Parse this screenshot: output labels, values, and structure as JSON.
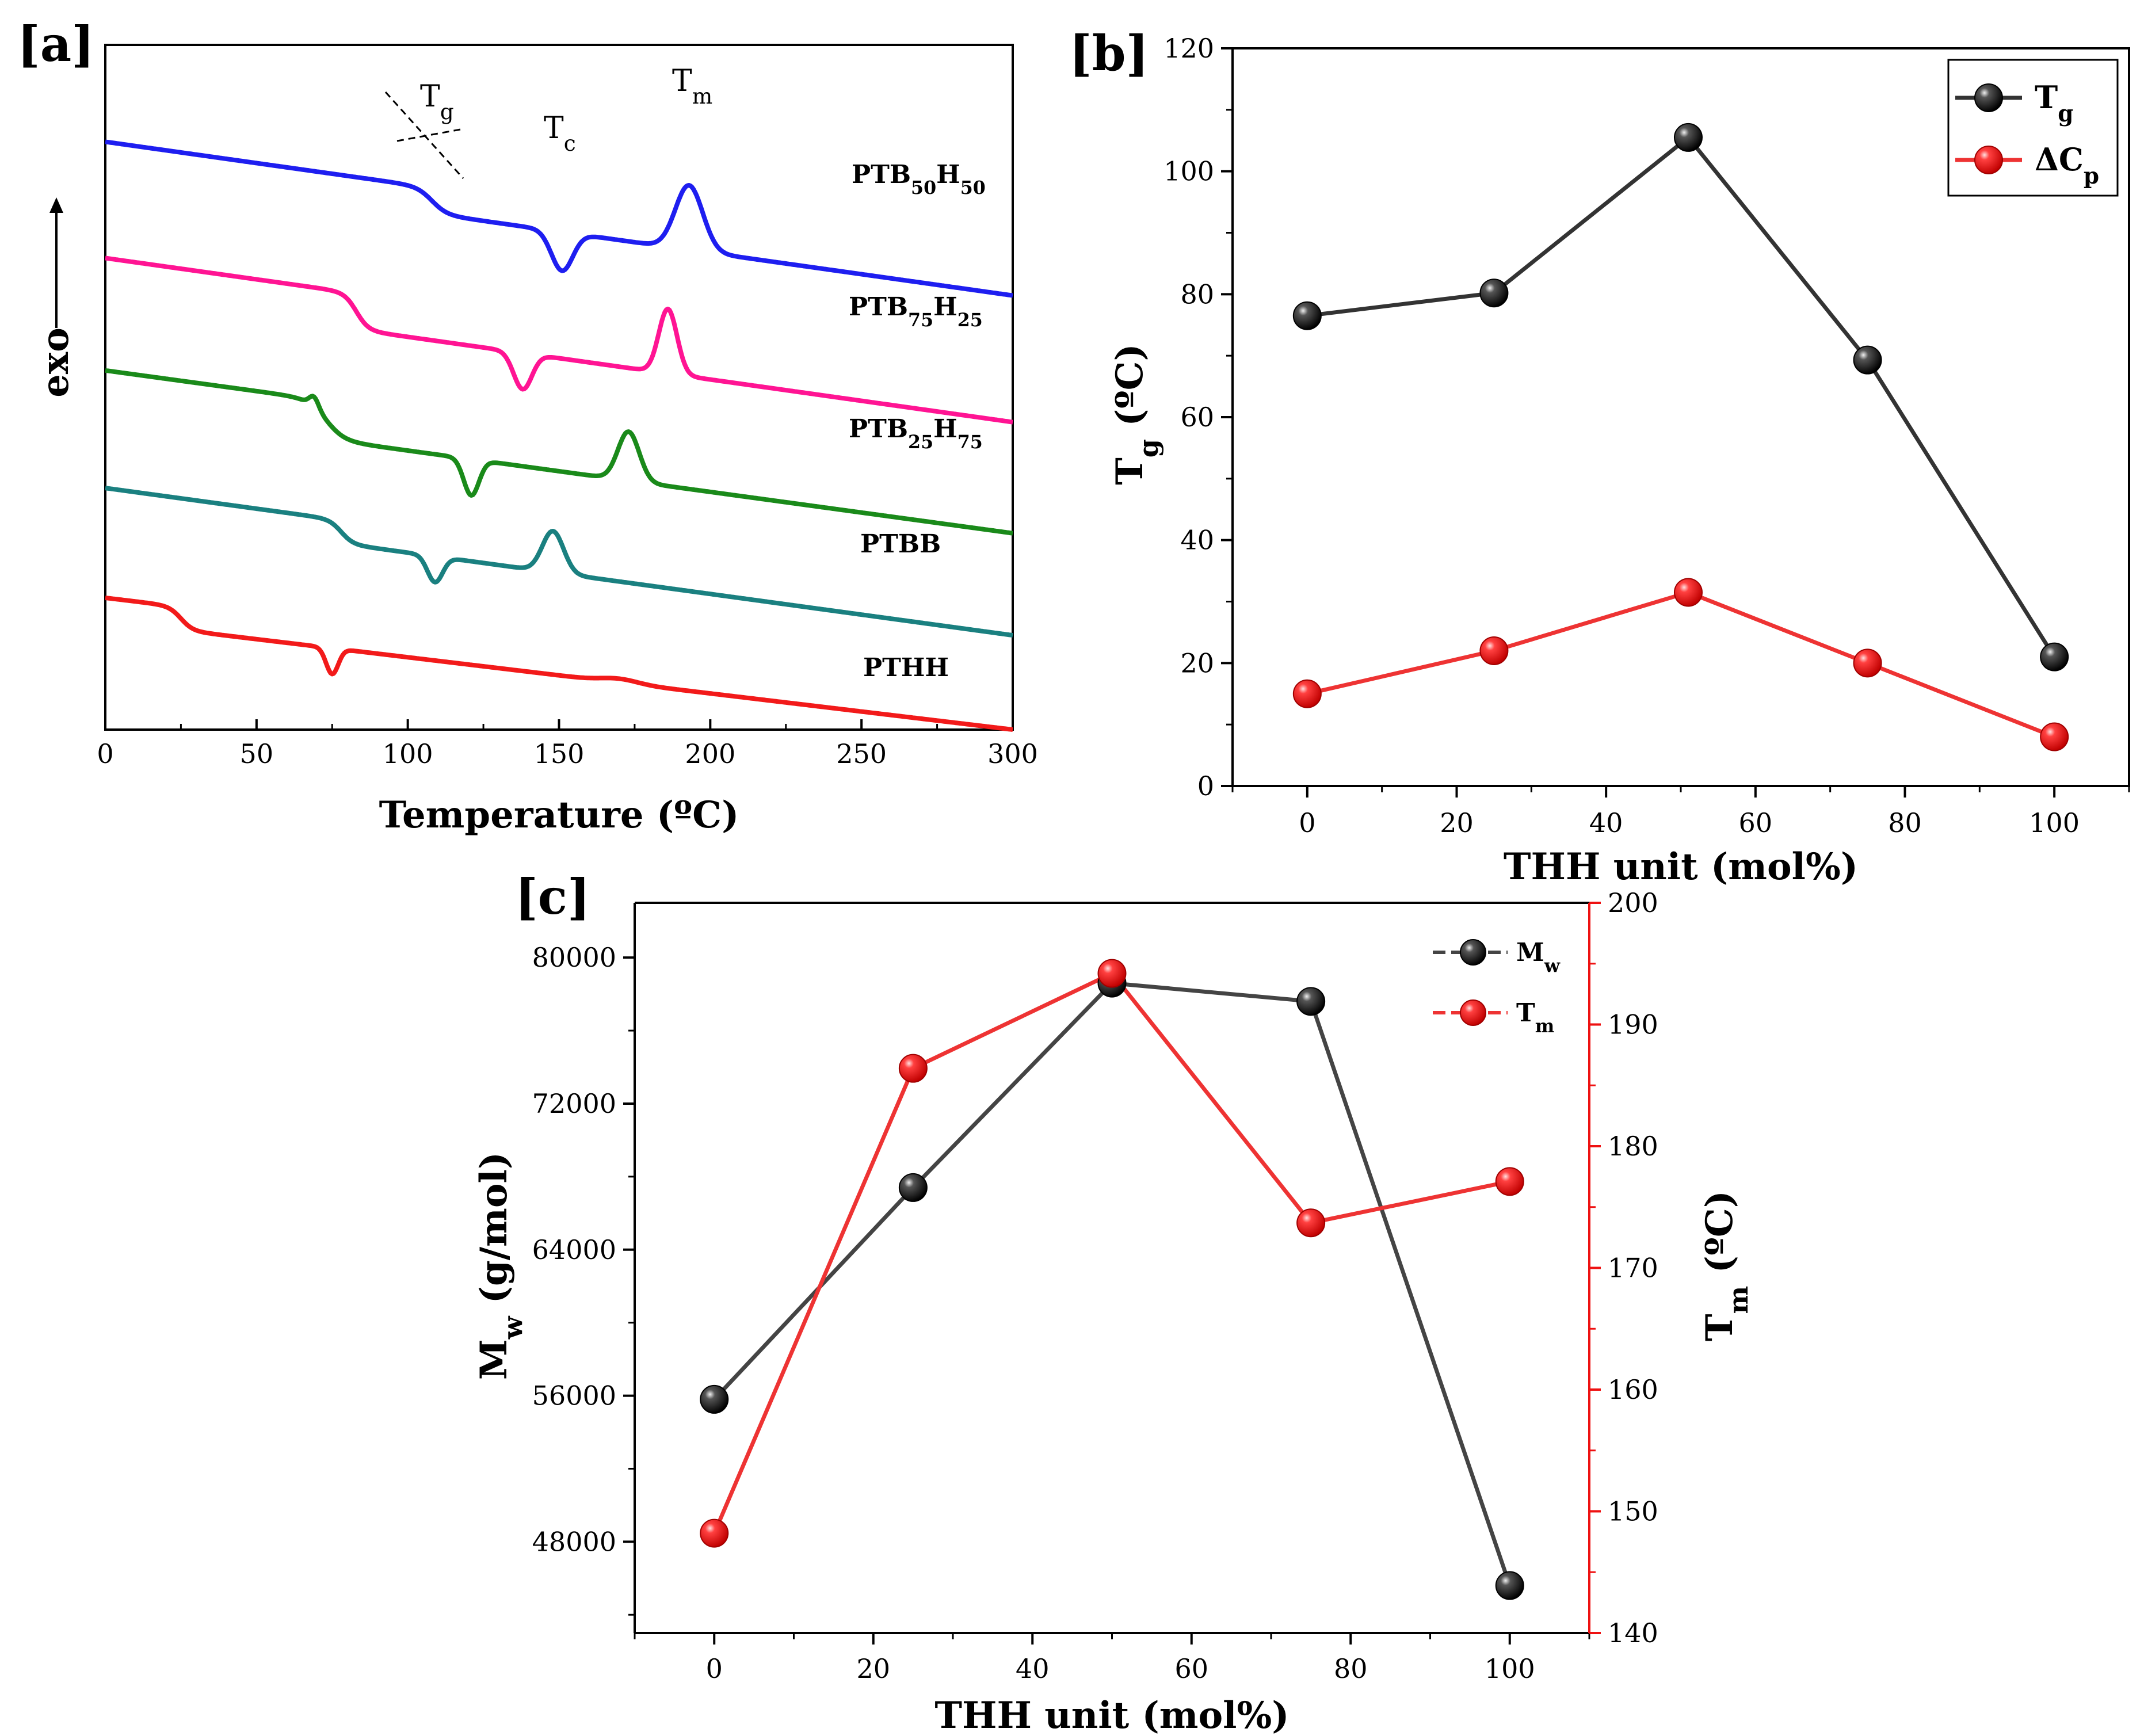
{
  "chart_data": [
    {
      "panel": "[a]",
      "type": "line",
      "title": "",
      "xlabel": "Temperature (ºC)",
      "ylabel": "exo",
      "xlim": [
        0,
        300
      ],
      "xticks": [
        0,
        50,
        100,
        150,
        200,
        250,
        300
      ],
      "annotations": [
        {
          "base": "T",
          "sub": "g"
        },
        {
          "base": "T",
          "sub": "c"
        },
        {
          "base": "T",
          "sub": "m"
        }
      ],
      "series": [
        {
          "name": "PTB50H50",
          "label_parts": [
            "PTB",
            "50",
            "H",
            "50",
            ""
          ],
          "color": "#1e1ef0",
          "offset": 4.55,
          "slope": 0.0033,
          "steps": [
            {
              "x": 108,
              "h": 0.2,
              "w": 2.5
            }
          ],
          "peaks": [
            {
              "x": 151,
              "h": -0.3,
              "w": 3.5
            },
            {
              "x": 193,
              "h": 0.5,
              "w": 4.5
            }
          ]
        },
        {
          "name": "PTB75H25",
          "label_parts": [
            "PTB",
            "75",
            "H",
            "25",
            ""
          ],
          "color": "#ff1493",
          "offset": 3.65,
          "slope": 0.0033,
          "steps": [
            {
              "x": 83,
              "h": 0.28,
              "w": 2.0
            }
          ],
          "peaks": [
            {
              "x": 138,
              "h": -0.28,
              "w": 3.0
            },
            {
              "x": 186,
              "h": 0.5,
              "w": 3.0
            }
          ]
        },
        {
          "name": "PTB25H75",
          "label_parts": [
            "PTB",
            "25",
            "H",
            "75",
            ""
          ],
          "color": "#1a8a1a",
          "offset": 2.78,
          "slope": 0.0032,
          "steps": [
            {
              "x": 73,
              "h": 0.3,
              "w": 3.0
            }
          ],
          "peaks": [
            {
              "x": 69,
              "h": 0.08,
              "w": 1.5
            },
            {
              "x": 121,
              "h": -0.28,
              "w": 2.5
            },
            {
              "x": 173,
              "h": 0.38,
              "w": 3.5
            }
          ]
        },
        {
          "name": "PTBB",
          "label_parts": [
            "PTBB",
            "",
            "",
            "",
            ""
          ],
          "color": "#1a8080",
          "offset": 1.87,
          "slope": 0.0032,
          "steps": [
            {
              "x": 78,
              "h": 0.18,
              "w": 2.0
            }
          ],
          "peaks": [
            {
              "x": 109,
              "h": -0.2,
              "w": 2.5
            },
            {
              "x": 148,
              "h": 0.32,
              "w": 3.5
            }
          ]
        },
        {
          "name": "PTHH",
          "label_parts": [
            "PTHH",
            "",
            "",
            "",
            ""
          ],
          "color": "#f21a1a",
          "offset": 1.02,
          "slope": 0.0028,
          "steps": [
            {
              "x": 25,
              "h": 0.18,
              "w": 2.0
            }
          ],
          "peaks": [
            {
              "x": 75,
              "h": -0.2,
              "w": 2.0
            },
            {
              "x": 170,
              "h": 0.03,
              "w": 6.0
            }
          ]
        }
      ]
    },
    {
      "panel": "[b]",
      "type": "line",
      "xlabel": "THH unit (mol%)",
      "ylabel_base": "T",
      "ylabel_sub": "g",
      "ylabel_rest": " (ºC)",
      "xlim": [
        -10,
        110
      ],
      "ylim": [
        0,
        120
      ],
      "xticks": [
        0,
        20,
        40,
        60,
        80,
        100
      ],
      "yticks": [
        0,
        20,
        40,
        60,
        80,
        100,
        120
      ],
      "series": [
        {
          "name": "Tg",
          "legend_base": "T",
          "legend_sub": "g",
          "color": "#000000",
          "line_color": "#333333",
          "x": [
            0,
            25,
            51,
            75,
            100
          ],
          "values": [
            76.5,
            80.2,
            105.5,
            69.3,
            21.0
          ]
        },
        {
          "name": "ΔCp",
          "legend_base": "ΔC",
          "legend_sub": "p",
          "color": "#ee1111",
          "line_color": "#ee3333",
          "x": [
            0,
            25,
            51,
            75,
            100
          ],
          "values": [
            15.0,
            22.0,
            31.5,
            20.0,
            8.0
          ]
        }
      ]
    },
    {
      "panel": "[c]",
      "type": "line",
      "xlabel": "THH unit (mol%)",
      "ylabel_left_base": "M",
      "ylabel_left_sub": "w",
      "ylabel_left_rest": " (g/mol)",
      "ylabel_right_base": "T",
      "ylabel_right_sub": "m",
      "ylabel_right_rest": " (ºC)",
      "xlim": [
        -10,
        110
      ],
      "ylim_left": [
        43000,
        83000
      ],
      "ylim_right": [
        140,
        200
      ],
      "xticks": [
        0,
        20,
        40,
        60,
        80,
        100
      ],
      "yticks_left": [
        48000,
        56000,
        64000,
        72000,
        80000
      ],
      "yticks_right": [
        140,
        150,
        160,
        170,
        180,
        190,
        200
      ],
      "series": [
        {
          "name": "Mw",
          "legend_base": "M",
          "legend_sub": "w",
          "axis": "left",
          "color": "#000000",
          "line_color": "#444444",
          "x": [
            0,
            25,
            50,
            75,
            100
          ],
          "values": [
            55800,
            67400,
            78600,
            77600,
            45600
          ]
        },
        {
          "name": "Tm",
          "legend_base": "T",
          "legend_sub": "m",
          "axis": "right",
          "color": "#ee1111",
          "line_color": "#ee3333",
          "x": [
            0,
            25,
            50,
            75,
            100
          ],
          "values": [
            148.2,
            186.4,
            194.2,
            173.7,
            177.1
          ]
        }
      ]
    }
  ]
}
